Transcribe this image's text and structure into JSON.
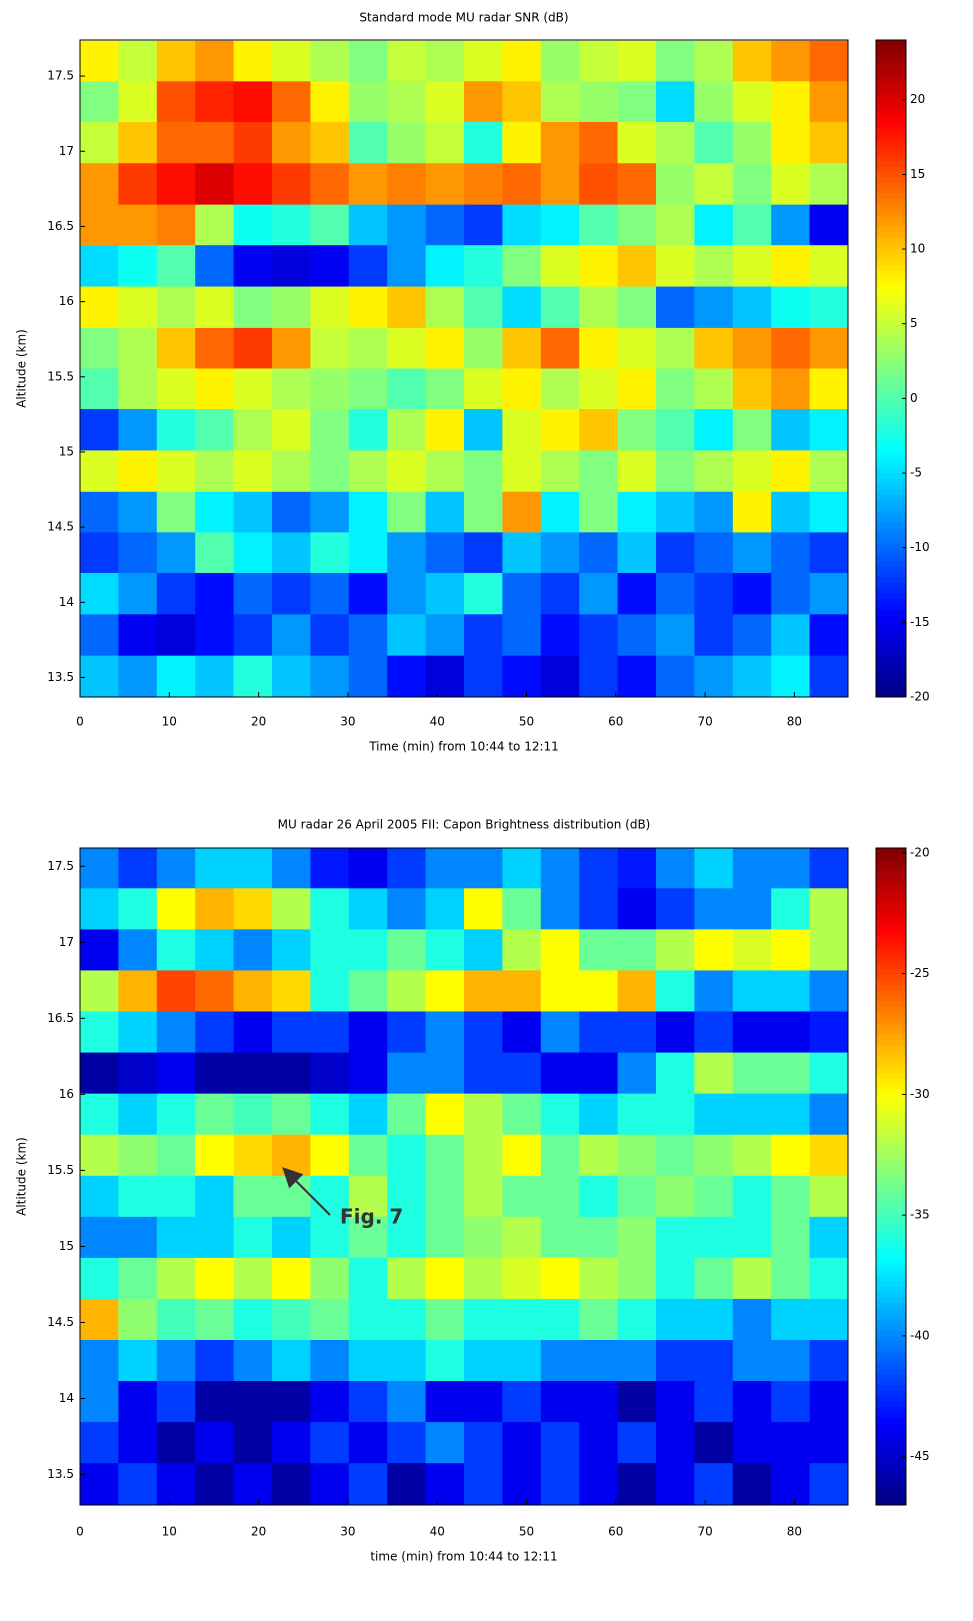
{
  "chart_data": [
    {
      "type": "heatmap",
      "title": "Standard mode MU radar SNR (dB)",
      "xlabel": "Time (min) from 10:44 to 12:11",
      "ylabel": "Altitude (km)",
      "colormap": "jet",
      "x": [
        2.15,
        6.45,
        10.75,
        15.05,
        19.35,
        23.65,
        27.95,
        32.25,
        36.55,
        40.85,
        45.15,
        49.45,
        53.75,
        58.05,
        62.35,
        66.65,
        70.95,
        75.25,
        79.55,
        83.85
      ],
      "y": [
        17.6,
        17.33,
        17.06,
        16.78,
        16.51,
        16.24,
        15.96,
        15.69,
        15.42,
        15.15,
        14.87,
        14.6,
        14.33,
        14.06,
        13.78,
        13.51
      ],
      "values": [
        [
          8,
          5,
          10,
          12,
          8,
          6,
          4,
          2,
          5,
          4,
          6,
          8,
          3,
          5,
          6,
          2,
          4,
          10,
          12,
          14
        ],
        [
          2,
          6,
          15,
          17,
          18,
          14,
          8,
          3,
          4,
          6,
          12,
          10,
          4,
          3,
          2,
          -5,
          3,
          6,
          8,
          12
        ],
        [
          5,
          10,
          14,
          14,
          16,
          12,
          10,
          0,
          3,
          5,
          -2,
          8,
          12,
          14,
          6,
          4,
          0,
          3,
          8,
          10
        ],
        [
          12,
          16,
          18,
          20,
          18,
          16,
          14,
          12,
          13,
          12,
          13,
          14,
          12,
          15,
          14,
          3,
          5,
          2,
          6,
          4
        ],
        [
          12,
          12,
          13,
          4,
          -3,
          -2,
          0,
          -6,
          -8,
          -10,
          -12,
          -5,
          -4,
          0,
          2,
          4,
          -4,
          0,
          -8,
          -15
        ],
        [
          -5,
          -3,
          0,
          -10,
          -15,
          -16,
          -15,
          -12,
          -8,
          -4,
          -2,
          2,
          6,
          8,
          10,
          6,
          4,
          6,
          8,
          6
        ],
        [
          8,
          6,
          4,
          6,
          2,
          3,
          6,
          8,
          10,
          4,
          0,
          -5,
          0,
          4,
          2,
          -10,
          -8,
          -6,
          -3,
          -2
        ],
        [
          2,
          4,
          10,
          14,
          16,
          12,
          5,
          4,
          6,
          8,
          3,
          10,
          14,
          8,
          6,
          4,
          10,
          12,
          14,
          12
        ],
        [
          0,
          4,
          6,
          8,
          6,
          4,
          3,
          2,
          0,
          2,
          6,
          8,
          4,
          6,
          8,
          2,
          4,
          10,
          12,
          8
        ],
        [
          -12,
          -8,
          -2,
          0,
          4,
          6,
          2,
          -2,
          4,
          8,
          -6,
          6,
          8,
          10,
          2,
          0,
          -4,
          2,
          -6,
          -4
        ],
        [
          6,
          8,
          6,
          4,
          6,
          4,
          2,
          4,
          6,
          4,
          2,
          6,
          4,
          2,
          6,
          2,
          4,
          6,
          8,
          4
        ],
        [
          -10,
          -8,
          2,
          -4,
          -6,
          -10,
          -8,
          -4,
          2,
          -6,
          2,
          12,
          -4,
          2,
          -4,
          -6,
          -8,
          8,
          -6,
          -4
        ],
        [
          -12,
          -10,
          -8,
          0,
          -4,
          -6,
          -2,
          -4,
          -8,
          -10,
          -12,
          -6,
          -8,
          -10,
          -6,
          -12,
          -10,
          -8,
          -10,
          -12
        ],
        [
          -5,
          -8,
          -12,
          -14,
          -10,
          -12,
          -10,
          -14,
          -8,
          -6,
          -2,
          -10,
          -12,
          -8,
          -14,
          -10,
          -12,
          -14,
          -10,
          -8
        ],
        [
          -10,
          -15,
          -16,
          -14,
          -12,
          -8,
          -12,
          -10,
          -6,
          -8,
          -12,
          -10,
          -14,
          -12,
          -10,
          -8,
          -12,
          -10,
          -6,
          -14
        ],
        [
          -6,
          -8,
          -4,
          -6,
          -2,
          -6,
          -8,
          -10,
          -14,
          -16,
          -12,
          -14,
          -16,
          -12,
          -14,
          -10,
          -8,
          -6,
          -4,
          -12
        ]
      ],
      "xlim": [
        0,
        86
      ],
      "ylim": [
        13.37,
        17.74
      ],
      "xticks": [
        0,
        10,
        20,
        30,
        40,
        50,
        60,
        70,
        80
      ],
      "yticks": [
        13.5,
        14,
        14.5,
        15,
        15.5,
        16,
        16.5,
        17,
        17.5
      ],
      "clim": [
        -20,
        24
      ],
      "cticks": [
        -20,
        -15,
        -10,
        -5,
        0,
        5,
        10,
        15,
        20
      ]
    },
    {
      "type": "heatmap",
      "title": "MU radar 26 April 2005 FII: Capon Brightness distribution (dB)",
      "xlabel": "time (min) from 10:44 to 12:11",
      "ylabel": "Altitude (km)",
      "colormap": "jet",
      "x": [
        2.15,
        6.45,
        10.75,
        15.05,
        19.35,
        23.65,
        27.95,
        32.25,
        36.55,
        40.85,
        45.15,
        49.45,
        53.75,
        58.05,
        62.35,
        66.65,
        70.95,
        75.25,
        79.55,
        83.85
      ],
      "y": [
        17.49,
        17.22,
        16.95,
        16.68,
        16.41,
        16.14,
        15.87,
        15.6,
        15.33,
        15.06,
        14.79,
        14.52,
        14.25,
        13.98,
        13.71,
        13.44
      ],
      "values": [
        [
          -40,
          -42,
          -40,
          -38,
          -38,
          -40,
          -43,
          -44,
          -42,
          -40,
          -40,
          -38,
          -40,
          -42,
          -43,
          -40,
          -38,
          -40,
          -40,
          -42
        ],
        [
          -38,
          -36,
          -30,
          -28,
          -29,
          -32,
          -36,
          -38,
          -40,
          -38,
          -30,
          -34,
          -40,
          -42,
          -44,
          -42,
          -40,
          -40,
          -36,
          -32
        ],
        [
          -44,
          -40,
          -36,
          -38,
          -40,
          -38,
          -36,
          -36,
          -34,
          -36,
          -38,
          -32,
          -30,
          -34,
          -34,
          -32,
          -30,
          -31,
          -30,
          -32
        ],
        [
          -32,
          -28,
          -25,
          -26,
          -28,
          -29,
          -36,
          -34,
          -32,
          -30,
          -28,
          -28,
          -30,
          -30,
          -28,
          -36,
          -40,
          -38,
          -38,
          -40
        ],
        [
          -36,
          -38,
          -40,
          -42,
          -44,
          -42,
          -42,
          -44,
          -42,
          -40,
          -42,
          -44,
          -40,
          -42,
          -42,
          -44,
          -42,
          -44,
          -44,
          -43
        ],
        [
          -46,
          -45,
          -44,
          -46,
          -46,
          -46,
          -45,
          -44,
          -40,
          -40,
          -42,
          -42,
          -44,
          -44,
          -40,
          -36,
          -32,
          -34,
          -34,
          -36
        ],
        [
          -36,
          -38,
          -36,
          -34,
          -35,
          -34,
          -36,
          -38,
          -34,
          -30,
          -32,
          -34,
          -36,
          -38,
          -36,
          -36,
          -38,
          -38,
          -38,
          -40
        ],
        [
          -32,
          -33,
          -34,
          -30,
          -29,
          -28,
          -30,
          -34,
          -36,
          -34,
          -32,
          -30,
          -34,
          -32,
          -33,
          -34,
          -33,
          -32,
          -30,
          -29
        ],
        [
          -38,
          -36,
          -36,
          -38,
          -34,
          -34,
          -36,
          -32,
          -36,
          -34,
          -32,
          -34,
          -34,
          -36,
          -34,
          -33,
          -34,
          -36,
          -34,
          -32
        ],
        [
          -40,
          -40,
          -38,
          -38,
          -36,
          -38,
          -36,
          -34,
          -36,
          -34,
          -33,
          -32,
          -34,
          -34,
          -33,
          -36,
          -36,
          -36,
          -34,
          -38
        ],
        [
          -36,
          -34,
          -32,
          -30,
          -32,
          -30,
          -33,
          -36,
          -32,
          -30,
          -32,
          -31,
          -30,
          -32,
          -33,
          -36,
          -34,
          -32,
          -34,
          -36
        ],
        [
          -28,
          -33,
          -35,
          -34,
          -36,
          -35,
          -34,
          -36,
          -36,
          -34,
          -36,
          -36,
          -36,
          -34,
          -36,
          -38,
          -38,
          -40,
          -38,
          -38
        ],
        [
          -40,
          -38,
          -40,
          -42,
          -40,
          -38,
          -40,
          -38,
          -38,
          -36,
          -38,
          -38,
          -40,
          -40,
          -40,
          -42,
          -42,
          -40,
          -40,
          -42
        ],
        [
          -40,
          -44,
          -42,
          -46,
          -46,
          -46,
          -44,
          -42,
          -40,
          -44,
          -44,
          -42,
          -44,
          -44,
          -46,
          -44,
          -42,
          -44,
          -42,
          -44
        ],
        [
          -42,
          -44,
          -46,
          -44,
          -46,
          -44,
          -42,
          -44,
          -42,
          -40,
          -42,
          -44,
          -42,
          -44,
          -42,
          -44,
          -46,
          -44,
          -44,
          -44
        ],
        [
          -44,
          -42,
          -44,
          -46,
          -44,
          -46,
          -44,
          -42,
          -46,
          -44,
          -42,
          -44,
          -42,
          -44,
          -46,
          -44,
          -42,
          -46,
          -44,
          -42
        ]
      ],
      "xlim": [
        0,
        86
      ],
      "ylim": [
        13.3,
        17.62
      ],
      "xticks": [
        0,
        10,
        20,
        30,
        40,
        50,
        60,
        70,
        80
      ],
      "yticks": [
        13.5,
        14,
        14.5,
        15,
        15.5,
        16,
        16.5,
        17,
        17.5
      ],
      "clim": [
        -47,
        -19.8
      ],
      "cticks": [
        -45,
        -40,
        -35,
        -30,
        -25,
        -20
      ],
      "annotations": [
        {
          "text": "Fig. 7"
        }
      ]
    }
  ]
}
